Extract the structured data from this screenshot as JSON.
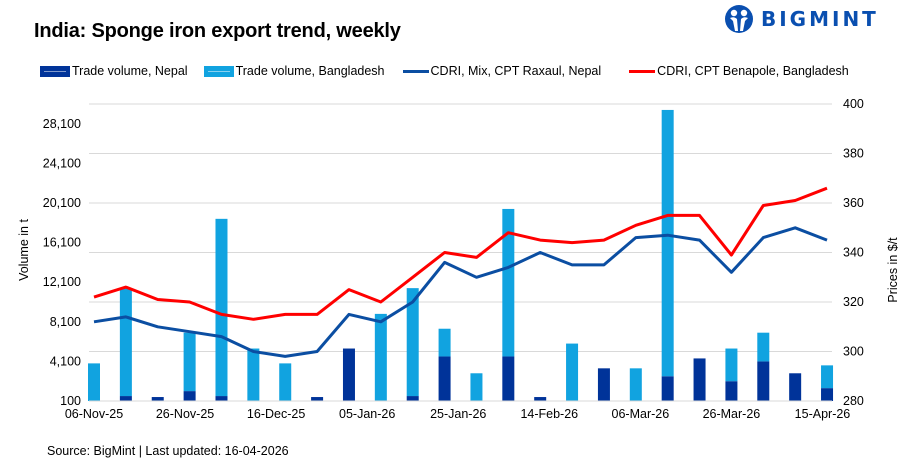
{
  "header": {
    "title": "India: Sponge iron export trend, weekly",
    "logo_text": "BIGMINT",
    "logo_color": "#0a4fb0"
  },
  "footer": {
    "source": "Source: BigMint | Last updated: 16-04-2026"
  },
  "chart_data": {
    "type": "bar+line",
    "title": "India: Sponge iron export trend, weekly",
    "x_axis": {
      "type": "date",
      "start": "2025-11-06",
      "tick_labels": [
        "06-Nov-25",
        "26-Nov-25",
        "16-Dec-25",
        "05-Jan-26",
        "25-Jan-26",
        "14-Feb-26",
        "06-Mar-26",
        "26-Mar-26",
        "15-Apr-26"
      ]
    },
    "y_left": {
      "label": "Volume in t",
      "range": [
        100,
        30100
      ],
      "tick_labels": [
        "100",
        "4,100",
        "8,100",
        "12,100",
        "16,100",
        "20,100",
        "24,100",
        "28,100"
      ]
    },
    "y_right": {
      "label": "Prices in $/t",
      "range": [
        280,
        400
      ],
      "tick_labels": [
        "280",
        "300",
        "320",
        "340",
        "360",
        "380",
        "400"
      ]
    },
    "grid": true,
    "legend_position": "top",
    "dates": [
      "2025-11-06",
      "2025-11-13",
      "2025-11-20",
      "2025-11-27",
      "2025-12-04",
      "2025-12-11",
      "2025-12-18",
      "2025-12-25",
      "2026-01-01",
      "2026-01-08",
      "2026-01-15",
      "2026-01-22",
      "2026-01-29",
      "2026-02-05",
      "2026-02-12",
      "2026-02-19",
      "2026-02-26",
      "2026-03-05",
      "2026-03-12",
      "2026-03-19",
      "2026-03-26",
      "2026-04-02",
      "2026-04-09",
      "2026-04-16"
    ],
    "series": [
      {
        "name": "Trade volume, Nepal",
        "type": "stacked-bar",
        "axis": "left",
        "color": "#003399",
        "values": [
          0,
          500,
          400,
          1000,
          500,
          0,
          0,
          400,
          5300,
          0,
          500,
          4500,
          0,
          4500,
          400,
          0,
          3300,
          0,
          2500,
          4300,
          2000,
          4000,
          2800,
          1300
        ]
      },
      {
        "name": "Trade volume, Bangladesh",
        "type": "stacked-bar",
        "axis": "left",
        "color": "#11a3e0",
        "values": [
          3800,
          10900,
          0,
          5900,
          17900,
          5300,
          3800,
          0,
          0,
          8800,
          10900,
          2800,
          2800,
          14900,
          0,
          5800,
          0,
          3300,
          26900,
          0,
          3300,
          2900,
          0,
          2300
        ]
      },
      {
        "name": "CDRI, Mix, CPT Raxaul, Nepal",
        "type": "line",
        "axis": "right",
        "color": "#0b4ea2",
        "values": [
          312,
          314,
          310,
          308,
          306,
          300,
          298,
          300,
          315,
          312,
          320,
          336,
          330,
          334,
          340,
          335,
          335,
          346,
          347,
          345,
          332,
          346,
          350,
          345
        ]
      },
      {
        "name": "CDRI, CPT Benapole, Bangladesh",
        "type": "line",
        "axis": "right",
        "color": "#ff0000",
        "values": [
          322,
          326,
          321,
          320,
          315,
          313,
          315,
          315,
          325,
          320,
          330,
          340,
          338,
          348,
          345,
          344,
          345,
          351,
          355,
          355,
          339,
          359,
          361,
          366
        ]
      }
    ]
  }
}
